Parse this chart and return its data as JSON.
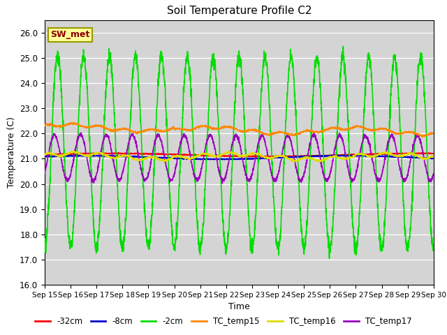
{
  "title": "Soil Temperature Profile C2",
  "xlabel": "Time",
  "ylabel": "Temperature (C)",
  "ylim": [
    16.0,
    26.5
  ],
  "yticks": [
    16.0,
    17.0,
    18.0,
    19.0,
    20.0,
    21.0,
    22.0,
    23.0,
    24.0,
    25.0,
    26.0
  ],
  "bg_color": "#d4d4d4",
  "outer_bg": "#ffffff",
  "annotation_text": "SW_met",
  "annotation_bg": "#ffff99",
  "annotation_border": "#999900",
  "annotation_text_color": "#8B0000",
  "legend_labels": [
    "-32cm",
    "-8cm",
    "-2cm",
    "TC_temp15",
    "TC_temp16",
    "TC_temp17"
  ],
  "line_colors": [
    "#ff0000",
    "#0000cc",
    "#00dd00",
    "#ff8800",
    "#dddd00",
    "#9900bb"
  ],
  "line_widths": [
    1.2,
    1.2,
    1.2,
    1.2,
    1.2,
    1.2
  ],
  "num_days": 15,
  "start_day": 15,
  "figsize": [
    6.4,
    4.8
  ],
  "dpi": 100
}
